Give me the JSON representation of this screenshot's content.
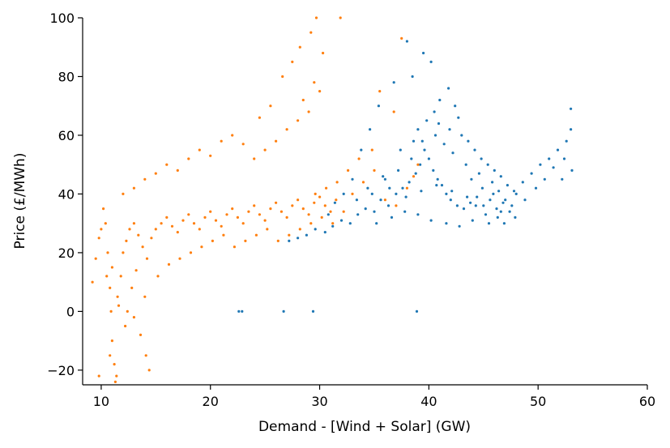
{
  "chart_data": {
    "type": "scatter",
    "title": "",
    "xlabel": "Demand - [Wind + Solar] (GW)",
    "ylabel": "Price (£/MWh)",
    "xlim": [
      8.3,
      60
    ],
    "ylim": [
      -25,
      100
    ],
    "x_ticks": [
      10,
      20,
      30,
      40,
      50,
      60
    ],
    "y_ticks": [
      -20,
      0,
      20,
      40,
      60,
      80,
      100
    ],
    "x_tick_labels": [
      "10",
      "20",
      "30",
      "40",
      "50",
      "60"
    ],
    "y_tick_labels": [
      "−20",
      "0",
      "20",
      "40",
      "60",
      "80",
      "100"
    ],
    "grid": false,
    "legend": "none",
    "spines": [
      "left",
      "bottom"
    ],
    "series": [
      {
        "color": "#1f77b4",
        "points": [
          [
            30.5,
            27
          ],
          [
            31.2,
            29
          ],
          [
            32.0,
            31
          ],
          [
            32.8,
            30
          ],
          [
            33.5,
            33
          ],
          [
            34.2,
            35
          ],
          [
            35.0,
            34
          ],
          [
            35.6,
            38
          ],
          [
            36.3,
            36
          ],
          [
            37.0,
            40
          ],
          [
            37.6,
            42
          ],
          [
            38.2,
            44
          ],
          [
            38.8,
            47
          ],
          [
            39.2,
            50
          ],
          [
            39.6,
            55
          ],
          [
            40.0,
            52
          ],
          [
            40.4,
            48
          ],
          [
            40.8,
            45
          ],
          [
            41.2,
            43
          ],
          [
            41.6,
            40
          ],
          [
            42.0,
            38
          ],
          [
            42.6,
            36
          ],
          [
            43.2,
            35
          ],
          [
            43.8,
            37
          ],
          [
            44.4,
            39
          ],
          [
            45.0,
            36
          ],
          [
            45.6,
            38
          ],
          [
            46.2,
            35
          ],
          [
            46.8,
            37
          ],
          [
            47.4,
            34
          ],
          [
            48.0,
            40
          ],
          [
            48.6,
            44
          ],
          [
            49.4,
            47
          ],
          [
            50.2,
            50
          ],
          [
            51.0,
            52
          ],
          [
            51.8,
            55
          ],
          [
            52.6,
            58
          ],
          [
            53.0,
            62
          ],
          [
            53.1,
            48
          ],
          [
            52.2,
            45
          ],
          [
            39.0,
            62
          ],
          [
            39.8,
            65
          ],
          [
            40.5,
            68
          ],
          [
            41.0,
            72
          ],
          [
            41.8,
            76
          ],
          [
            42.4,
            70
          ],
          [
            43.0,
            60
          ],
          [
            43.6,
            58
          ],
          [
            44.2,
            55
          ],
          [
            44.8,
            52
          ],
          [
            45.4,
            50
          ],
          [
            46.0,
            48
          ],
          [
            46.6,
            46
          ],
          [
            47.2,
            43
          ],
          [
            47.8,
            41
          ],
          [
            38.5,
            80
          ],
          [
            39.5,
            88
          ],
          [
            40.2,
            85
          ],
          [
            38.0,
            92
          ],
          [
            36.8,
            78
          ],
          [
            35.4,
            70
          ],
          [
            34.6,
            62
          ],
          [
            33.8,
            55
          ],
          [
            33.0,
            45
          ],
          [
            32.2,
            40
          ],
          [
            31.4,
            37
          ],
          [
            30.8,
            33
          ],
          [
            29.6,
            28
          ],
          [
            28.8,
            26
          ],
          [
            28.0,
            25
          ],
          [
            27.2,
            24
          ],
          [
            36.0,
            45
          ],
          [
            37.2,
            48
          ],
          [
            38.4,
            52
          ],
          [
            39.4,
            58
          ],
          [
            40.6,
            60
          ],
          [
            41.4,
            57
          ],
          [
            42.2,
            54
          ],
          [
            43.4,
            50
          ],
          [
            44.6,
            47
          ],
          [
            45.8,
            44
          ],
          [
            46.4,
            41
          ],
          [
            47.0,
            38
          ],
          [
            35.2,
            30
          ],
          [
            36.6,
            32
          ],
          [
            37.8,
            34
          ],
          [
            39.0,
            33
          ],
          [
            40.2,
            31
          ],
          [
            41.6,
            30
          ],
          [
            42.8,
            29
          ],
          [
            44.0,
            31
          ],
          [
            45.2,
            33
          ],
          [
            46.6,
            34
          ],
          [
            47.6,
            36
          ],
          [
            48.8,
            38
          ],
          [
            49.8,
            42
          ],
          [
            50.6,
            45
          ],
          [
            51.4,
            49
          ],
          [
            52.4,
            52
          ],
          [
            53.0,
            69
          ],
          [
            22.6,
            0
          ],
          [
            22.9,
            0
          ],
          [
            26.7,
            0
          ],
          [
            29.4,
            0
          ],
          [
            38.9,
            0
          ],
          [
            34.4,
            42
          ],
          [
            35.8,
            46
          ],
          [
            37.4,
            55
          ],
          [
            38.6,
            58
          ],
          [
            40.9,
            64
          ],
          [
            41.9,
            62
          ],
          [
            42.7,
            66
          ],
          [
            43.9,
            45
          ],
          [
            44.9,
            42
          ],
          [
            45.9,
            40
          ],
          [
            46.9,
            30
          ],
          [
            47.9,
            32
          ],
          [
            33.4,
            38
          ],
          [
            34.8,
            40
          ],
          [
            36.4,
            42
          ],
          [
            37.9,
            39
          ],
          [
            39.3,
            41
          ],
          [
            40.7,
            43
          ],
          [
            42.1,
            41
          ],
          [
            43.5,
            39
          ],
          [
            44.3,
            36
          ],
          [
            45.5,
            30
          ],
          [
            46.3,
            32
          ]
        ]
      },
      {
        "color": "#ff7f0e",
        "points": [
          [
            9.2,
            10
          ],
          [
            9.5,
            18
          ],
          [
            9.8,
            25
          ],
          [
            10.0,
            28
          ],
          [
            10.2,
            35
          ],
          [
            10.4,
            30
          ],
          [
            10.6,
            20
          ],
          [
            10.8,
            8
          ],
          [
            10.9,
            0
          ],
          [
            11.0,
            -10
          ],
          [
            11.2,
            -18
          ],
          [
            11.4,
            -22
          ],
          [
            11.6,
            2
          ],
          [
            11.8,
            12
          ],
          [
            12.0,
            20
          ],
          [
            12.3,
            24
          ],
          [
            12.6,
            28
          ],
          [
            13.0,
            30
          ],
          [
            13.4,
            26
          ],
          [
            13.8,
            22
          ],
          [
            14.2,
            18
          ],
          [
            14.6,
            25
          ],
          [
            15.0,
            28
          ],
          [
            15.5,
            30
          ],
          [
            16.0,
            32
          ],
          [
            16.5,
            29
          ],
          [
            17.0,
            27
          ],
          [
            17.5,
            31
          ],
          [
            18.0,
            33
          ],
          [
            18.5,
            30
          ],
          [
            19.0,
            28
          ],
          [
            19.5,
            32
          ],
          [
            20.0,
            34
          ],
          [
            20.5,
            31
          ],
          [
            21.0,
            29
          ],
          [
            21.5,
            33
          ],
          [
            22.0,
            35
          ],
          [
            22.5,
            32
          ],
          [
            23.0,
            30
          ],
          [
            23.5,
            34
          ],
          [
            24.0,
            36
          ],
          [
            24.5,
            33
          ],
          [
            25.0,
            31
          ],
          [
            25.5,
            35
          ],
          [
            26.0,
            37
          ],
          [
            26.5,
            34
          ],
          [
            27.0,
            32
          ],
          [
            27.5,
            36
          ],
          [
            28.0,
            38
          ],
          [
            28.5,
            35
          ],
          [
            29.0,
            33
          ],
          [
            29.5,
            37
          ],
          [
            30.0,
            39
          ],
          [
            30.5,
            36
          ],
          [
            31.0,
            34
          ],
          [
            31.5,
            38
          ],
          [
            12.0,
            40
          ],
          [
            13.0,
            42
          ],
          [
            14.0,
            45
          ],
          [
            15.0,
            47
          ],
          [
            16.0,
            50
          ],
          [
            17.0,
            48
          ],
          [
            18.0,
            52
          ],
          [
            19.0,
            55
          ],
          [
            20.0,
            53
          ],
          [
            21.0,
            58
          ],
          [
            22.0,
            60
          ],
          [
            23.0,
            57
          ],
          [
            24.0,
            52
          ],
          [
            25.0,
            55
          ],
          [
            26.0,
            58
          ],
          [
            27.0,
            62
          ],
          [
            28.0,
            65
          ],
          [
            28.5,
            72
          ],
          [
            29.0,
            68
          ],
          [
            29.5,
            78
          ],
          [
            30.0,
            75
          ],
          [
            27.5,
            85
          ],
          [
            28.2,
            90
          ],
          [
            29.2,
            95
          ],
          [
            29.7,
            100
          ],
          [
            31.9,
            100
          ],
          [
            30.3,
            88
          ],
          [
            26.6,
            80
          ],
          [
            25.5,
            70
          ],
          [
            24.5,
            66
          ],
          [
            11.0,
            15
          ],
          [
            11.5,
            5
          ],
          [
            12.2,
            -5
          ],
          [
            12.8,
            8
          ],
          [
            13.2,
            14
          ],
          [
            13.6,
            -8
          ],
          [
            14.1,
            -15
          ],
          [
            14.4,
            -20
          ],
          [
            14.0,
            5
          ],
          [
            10.5,
            12
          ],
          [
            11.3,
            -24
          ],
          [
            9.8,
            -22
          ],
          [
            10.8,
            -15
          ],
          [
            12.4,
            0
          ],
          [
            13.0,
            -2
          ],
          [
            15.2,
            12
          ],
          [
            16.2,
            16
          ],
          [
            17.2,
            18
          ],
          [
            18.2,
            20
          ],
          [
            19.2,
            22
          ],
          [
            20.2,
            24
          ],
          [
            21.2,
            26
          ],
          [
            22.2,
            22
          ],
          [
            23.2,
            24
          ],
          [
            24.2,
            26
          ],
          [
            25.2,
            28
          ],
          [
            26.2,
            24
          ],
          [
            27.2,
            26
          ],
          [
            28.2,
            28
          ],
          [
            29.2,
            30
          ],
          [
            30.2,
            32
          ],
          [
            31.2,
            30
          ],
          [
            32.2,
            34
          ],
          [
            33.0,
            40
          ],
          [
            34.0,
            44
          ],
          [
            35.0,
            48
          ],
          [
            36.0,
            38
          ],
          [
            37.0,
            36
          ],
          [
            38.0,
            42
          ],
          [
            38.6,
            46
          ],
          [
            39.0,
            50
          ],
          [
            37.5,
            93
          ],
          [
            35.5,
            75
          ],
          [
            36.8,
            68
          ],
          [
            34.8,
            55
          ],
          [
            33.6,
            52
          ],
          [
            32.6,
            48
          ],
          [
            31.6,
            44
          ],
          [
            30.6,
            42
          ],
          [
            29.6,
            40
          ]
        ]
      }
    ]
  }
}
